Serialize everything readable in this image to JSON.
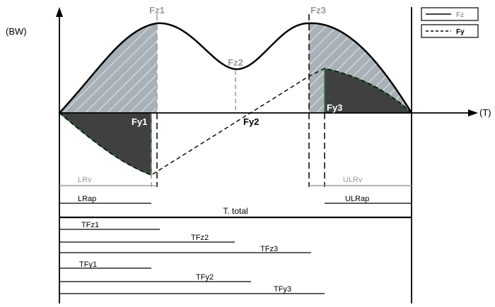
{
  "chart_data": {
    "type": "line",
    "y_axis_label": "(BW)",
    "x_axis_label": "(T)",
    "legend": [
      {
        "label": "Fz",
        "style": "solid",
        "color": "#999999"
      },
      {
        "label": "Fy",
        "style": "dashed",
        "color": "#000000"
      }
    ],
    "peak_labels": {
      "fz1": "Fz1",
      "fz2": "Fz2",
      "fz3": "Fz3",
      "fy1": "Fy1",
      "fy2": "Fy2",
      "fy3": "Fy3"
    },
    "segments": {
      "lrv": "LRv",
      "lrap": "LRap",
      "t_total": "T. total",
      "ulrv": "ULRv",
      "ulrap": "ULRap",
      "tfz1": "TFz1",
      "tfz2": "TFz2",
      "tfz3": "TFz3",
      "tfy1": "TFy1",
      "tfy2": "TFy2",
      "tfy3": "TFy3"
    },
    "colors": {
      "fz_curve": "#000000",
      "fy_curve": "#000000",
      "hatched_fill": "#a8b0b8",
      "dark_fill": "#404040",
      "green_edge": "#2f7f3f",
      "gray_guides": "#9a9a9a"
    }
  }
}
